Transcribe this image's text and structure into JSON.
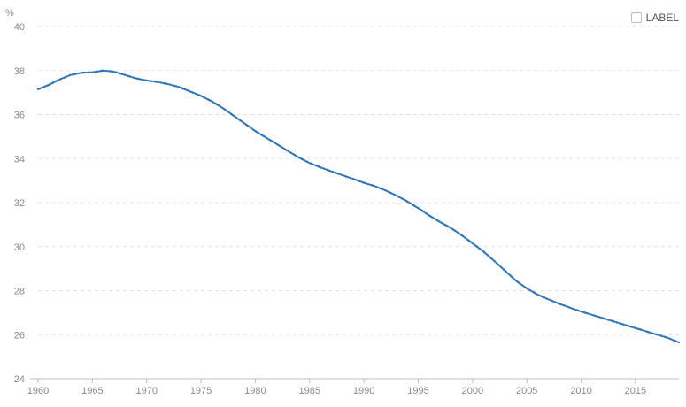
{
  "legend": {
    "label": "LABEL",
    "checked": false
  },
  "chart_data": {
    "type": "line",
    "title": "",
    "xlabel": "",
    "ylabel": "%",
    "xlim": [
      1960,
      2019
    ],
    "ylim": [
      24,
      40
    ],
    "xticks": [
      1960,
      1965,
      1970,
      1975,
      1980,
      1985,
      1990,
      1995,
      2000,
      2005,
      2010,
      2015
    ],
    "yticks": [
      24,
      26,
      28,
      30,
      32,
      34,
      36,
      38,
      40
    ],
    "grid": true,
    "legend_position": "top-right",
    "series": [
      {
        "color": "#2e75b6",
        "x": [
          1960,
          1961,
          1962,
          1963,
          1964,
          1965,
          1966,
          1967,
          1968,
          1969,
          1970,
          1971,
          1972,
          1973,
          1974,
          1975,
          1976,
          1977,
          1978,
          1979,
          1980,
          1981,
          1982,
          1983,
          1984,
          1985,
          1986,
          1987,
          1988,
          1989,
          1990,
          1991,
          1992,
          1993,
          1994,
          1995,
          1996,
          1997,
          1998,
          1999,
          2000,
          2001,
          2002,
          2003,
          2004,
          2005,
          2006,
          2007,
          2008,
          2009,
          2010,
          2011,
          2012,
          2013,
          2014,
          2015,
          2016,
          2017,
          2018,
          2019
        ],
        "y": [
          37.15,
          37.35,
          37.6,
          37.8,
          37.9,
          37.92,
          38.0,
          37.95,
          37.8,
          37.65,
          37.55,
          37.48,
          37.38,
          37.25,
          37.05,
          36.85,
          36.6,
          36.3,
          35.95,
          35.6,
          35.25,
          34.95,
          34.65,
          34.35,
          34.05,
          33.8,
          33.6,
          33.42,
          33.25,
          33.08,
          32.9,
          32.75,
          32.55,
          32.32,
          32.05,
          31.75,
          31.42,
          31.12,
          30.85,
          30.52,
          30.15,
          29.78,
          29.35,
          28.9,
          28.45,
          28.1,
          27.82,
          27.6,
          27.4,
          27.22,
          27.05,
          26.9,
          26.75,
          26.6,
          26.45,
          26.3,
          26.15,
          26.0,
          25.85,
          25.65
        ]
      }
    ]
  }
}
